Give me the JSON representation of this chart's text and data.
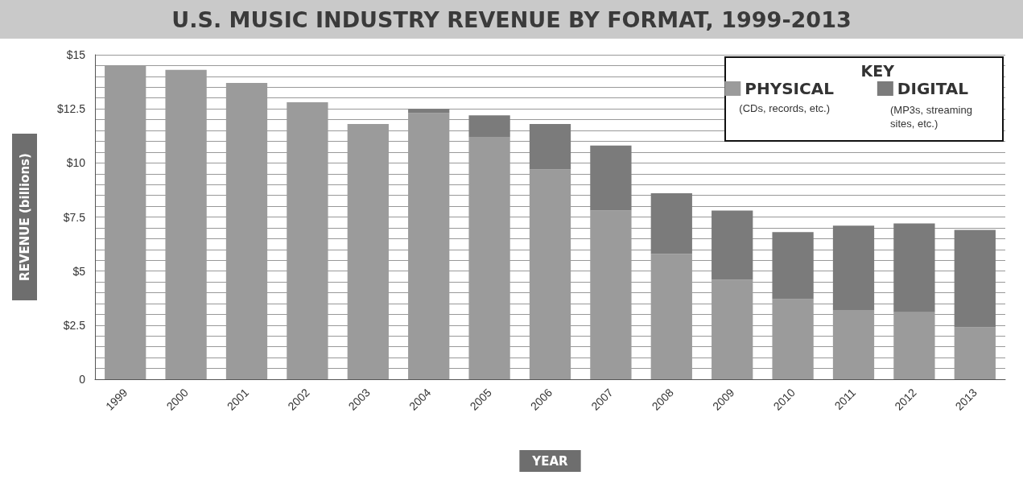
{
  "chart_data": {
    "type": "bar",
    "stacked": true,
    "title": "U.S. MUSIC INDUSTRY REVENUE BY FORMAT, 1999-2013",
    "xlabel": "YEAR",
    "ylabel": "REVENUE (billions)",
    "legend_title": "KEY",
    "legend": "top right",
    "grid": "y",
    "categories": [
      "1999",
      "2000",
      "2001",
      "2002",
      "2003",
      "2004",
      "2005",
      "2006",
      "2007",
      "2008",
      "2009",
      "2010",
      "2011",
      "2012",
      "2013"
    ],
    "series": [
      {
        "name": "PHYSICAL",
        "color": "#9b9b9b",
        "values": [
          14.5,
          14.3,
          13.7,
          12.8,
          11.8,
          12.3,
          11.2,
          9.7,
          7.8,
          5.8,
          4.6,
          3.7,
          3.2,
          3.1,
          2.4
        ]
      },
      {
        "name": "DIGITAL",
        "color": "#7b7b7b",
        "values": [
          0,
          0,
          0,
          0,
          0,
          0.2,
          1.0,
          2.1,
          3.0,
          2.8,
          3.2,
          3.1,
          3.9,
          4.1,
          4.5
        ]
      }
    ],
    "annotations": [
      "(CDs, records, etc.)",
      "(MP3s, streaming sites, etc.)"
    ],
    "ylim": [
      0,
      15
    ],
    "yticks": [
      0,
      {
        "value": 0.5,
        "label": null
      },
      {
        "value": 1,
        "label": null
      },
      {
        "value": 1.5,
        "label": null
      },
      {
        "value": 2,
        "label": null
      },
      {
        "value": 2.5,
        "label": "$2.5"
      },
      {
        "value": 3,
        "label": null
      },
      {
        "value": 3.5,
        "label": null
      },
      {
        "value": 4,
        "label": null
      },
      {
        "value": 4.5,
        "label": null
      },
      {
        "value": 5,
        "label": "$5"
      },
      {
        "value": 5.5,
        "label": null
      },
      {
        "value": 6,
        "label": null
      },
      {
        "value": 6.5,
        "label": null
      },
      {
        "value": 7,
        "label": null
      },
      {
        "value": 7.5,
        "label": "$7.5"
      },
      {
        "value": 8,
        "label": null
      },
      {
        "value": 8.5,
        "label": null
      },
      {
        "value": 9,
        "label": null
      },
      {
        "value": 9.5,
        "label": null
      },
      {
        "value": 10,
        "label": "$10"
      },
      {
        "value": 10.5,
        "label": null
      },
      {
        "value": 11,
        "label": null
      },
      {
        "value": 11.5,
        "label": null
      },
      {
        "value": 12,
        "label": null
      },
      {
        "value": 12.5,
        "label": "$12.5"
      },
      {
        "value": 13,
        "label": null
      },
      {
        "value": 13.5,
        "label": null
      },
      {
        "value": 14,
        "label": null
      },
      {
        "value": 14.5,
        "label": null
      },
      {
        "value": 15,
        "label": "$15"
      }
    ]
  }
}
